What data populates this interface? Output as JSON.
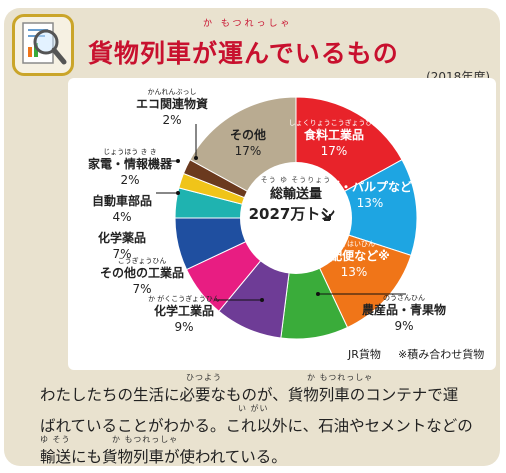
{
  "header": {
    "title": "貨物列車が運んでいるもの",
    "title_ruby": "か もつれっしゃ",
    "year_note": "(2018年度)"
  },
  "chart_data": {
    "type": "pie",
    "center_label": "総輸送量",
    "center_ruby": "そう ゆ そうりょう",
    "center_value": "2027万トン",
    "slices": [
      {
        "label": "食料工業品",
        "ruby": "しょくりょうこうぎょうひん",
        "value": 17,
        "value_label": "17%",
        "color": "#e8232a"
      },
      {
        "label": "紙・パルプなど",
        "ruby": "",
        "value": 13,
        "value_label": "13%",
        "color": "#1ea5e2"
      },
      {
        "label": "宅配便など※",
        "ruby": "たくはいびん",
        "value": 13,
        "value_label": "13%",
        "color": "#f07518"
      },
      {
        "label": "農産品・青果物",
        "ruby": "のうさんひん",
        "value": 9,
        "value_label": "9%",
        "color": "#3aac3a"
      },
      {
        "label": "化学工業品",
        "ruby": "か がくこうぎょうひん",
        "value": 9,
        "value_label": "9%",
        "color": "#6e3c96"
      },
      {
        "label": "その他の工業品",
        "ruby": "こうぎょうひん",
        "value": 7,
        "value_label": "7%",
        "color": "#e81d82"
      },
      {
        "label": "化学薬品",
        "ruby": "",
        "value": 7,
        "value_label": "7%",
        "color": "#1f4fa0"
      },
      {
        "label": "自動車部品",
        "ruby": "",
        "value": 4,
        "value_label": "4%",
        "color": "#1fb3b0"
      },
      {
        "label": "家電・情報機器",
        "ruby": "じょうほう き き",
        "value": 2,
        "value_label": "2%",
        "color": "#f0c419"
      },
      {
        "label": "エコ関連物資",
        "ruby": "かんれんぶっし",
        "value": 2,
        "value_label": "2%",
        "color": "#6b3a1e"
      },
      {
        "label": "その他",
        "ruby": "",
        "value": 17,
        "value_label": "17%",
        "color": "#b9ab91"
      }
    ],
    "source": "JR貨物",
    "note": "※積み合わせ貨物"
  },
  "footer": {
    "line1": "わたしたちの生活に必要なものが、貨物列車のコンテナで運",
    "line2": "ばれていることがわかる。これ以外に、石油やセメントなどの",
    "line3": "輸送にも貨物列車が使われている。",
    "rubies": [
      "ひつよう",
      "か もつれっしゃ",
      "い がい",
      "ゆ そう",
      "か もつれっしゃ"
    ]
  },
  "colors": {
    "accent": "#c8102e",
    "panel": "#e9e2cf",
    "icon_border": "#caa52a"
  },
  "icons": {
    "header": "magnifier-document-icon"
  }
}
